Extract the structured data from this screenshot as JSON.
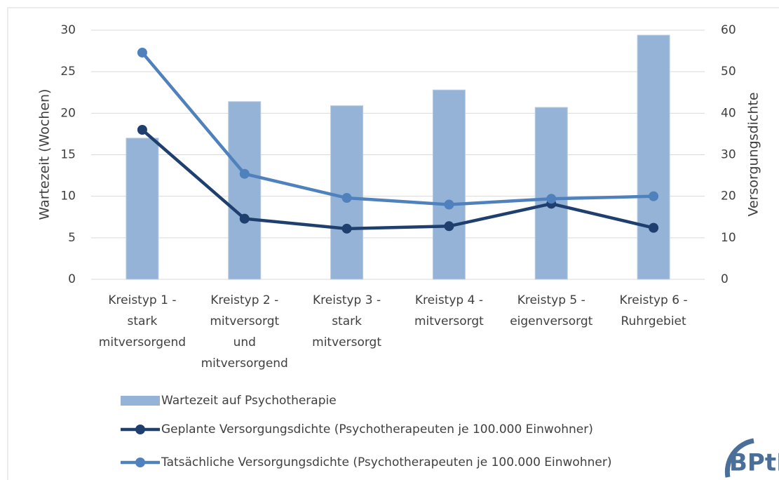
{
  "chart_data": {
    "type": "bar_line",
    "categories": [
      "Kreistyp 1 -\nstark\nmitversorgend",
      "Kreistyp 2 -\nmitversorgt\nund\nmitversorgend",
      "Kreistyp 3 -\nstark\nmitversorgt",
      "Kreistyp 4 -\nmitversorgt",
      "Kreistyp 5 -\neigenversorgt",
      "Kreistyp 6 -\nRuhrgebiet"
    ],
    "series": [
      {
        "name": "Wartezeit auf Psychotherapie",
        "type": "bar",
        "color": "#95b3d7",
        "values": [
          17,
          21.4,
          20.9,
          22.8,
          20.7,
          29.4
        ]
      },
      {
        "name": "Geplante Versorgungsdichte (Psychotherapeuten je 100.000 Einwohner)",
        "type": "line",
        "axis": "y2",
        "color": "#1f3f6e",
        "values": [
          36,
          14.6,
          12.2,
          12.8,
          18.2,
          12.4
        ]
      },
      {
        "name": "Tatsächliche Versorgungsdichte (Psychotherapeuten je 100.000 Einwohner)",
        "type": "line",
        "axis": "y2",
        "color": "#4f81bd",
        "values": [
          54.6,
          25.4,
          19.6,
          18,
          19.4,
          20
        ]
      }
    ],
    "ylabel": "Wartezeit (Wochen)",
    "y2label": "Versorgungsdichte",
    "ylim": [
      0,
      30
    ],
    "yticks": [
      0,
      5,
      10,
      15,
      20,
      25,
      30
    ],
    "y2lim": [
      0,
      60
    ],
    "y2ticks": [
      0,
      10,
      20,
      30,
      40,
      50,
      60
    ],
    "grid": true,
    "legend": "bottom"
  },
  "logo": "BPtK"
}
